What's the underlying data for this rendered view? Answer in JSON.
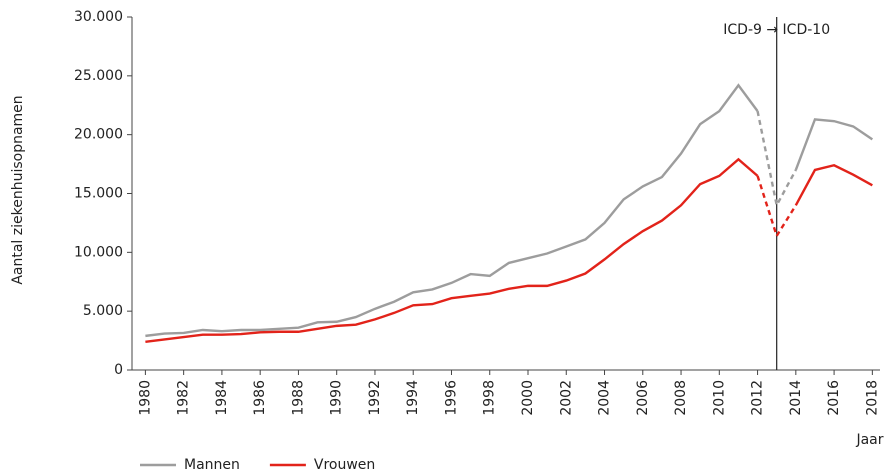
{
  "chart_data": {
    "type": "line",
    "y_label": "Aantal ziekenhuisopnamen",
    "x_label": "Jaar",
    "annotation": {
      "text": "ICD-9 → ICD-10",
      "x": 2013
    },
    "dashed_xrange": [
      2012,
      2014
    ],
    "x": [
      1980,
      1981,
      1982,
      1983,
      1984,
      1985,
      1986,
      1987,
      1988,
      1989,
      1990,
      1991,
      1992,
      1993,
      1994,
      1995,
      1996,
      1997,
      1998,
      1999,
      2000,
      2001,
      2002,
      2003,
      2004,
      2005,
      2006,
      2007,
      2008,
      2009,
      2010,
      2011,
      2012,
      2013,
      2014,
      2015,
      2016,
      2017,
      2018
    ],
    "series": [
      {
        "name": "Mannen",
        "color": "#9d9d9d",
        "values": [
          2900,
          3100,
          3150,
          3400,
          3300,
          3400,
          3400,
          3500,
          3600,
          4050,
          4100,
          4500,
          5200,
          5800,
          6600,
          6850,
          7400,
          8150,
          8000,
          9100,
          9500,
          9900,
          10500,
          11100,
          12500,
          14500,
          15600,
          16400,
          18400,
          20900,
          22000,
          24200,
          22000,
          14000,
          17000,
          21300,
          21150,
          20700,
          19600
        ]
      },
      {
        "name": "Vrouwen",
        "color": "#e2231a",
        "values": [
          2400,
          2600,
          2800,
          3000,
          3000,
          3050,
          3200,
          3250,
          3250,
          3500,
          3750,
          3850,
          4300,
          4850,
          5500,
          5600,
          6100,
          6300,
          6500,
          6900,
          7150,
          7150,
          7600,
          8200,
          9400,
          10700,
          11800,
          12700,
          14000,
          15800,
          16500,
          17900,
          16500,
          11400,
          14000,
          17000,
          17400,
          16600,
          15700
        ]
      }
    ],
    "xlim": [
      1979.3,
      2018.4
    ],
    "xticks": [
      1980,
      1982,
      1984,
      1986,
      1988,
      1990,
      1992,
      1994,
      1996,
      1998,
      2000,
      2002,
      2004,
      2006,
      2008,
      2010,
      2012,
      2014,
      2016,
      2018
    ],
    "ylim": [
      0,
      30000
    ],
    "yticks": [
      0,
      {
        "value": 5000,
        "label": "5.000"
      },
      {
        "value": 10000,
        "label": "10.000"
      },
      {
        "value": 15000,
        "label": "15.000"
      },
      {
        "value": 20000,
        "label": "20.000"
      },
      {
        "value": 25000,
        "label": "25.000"
      },
      {
        "value": 30000,
        "label": "30.000"
      }
    ],
    "grid": false,
    "legend": "bottom-left"
  }
}
